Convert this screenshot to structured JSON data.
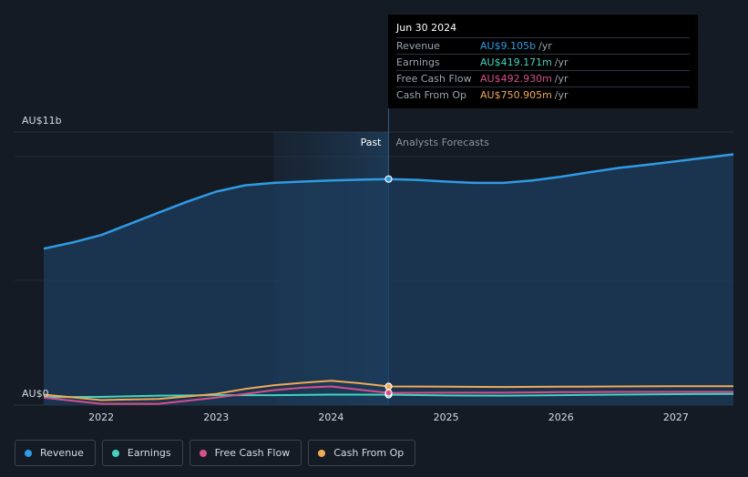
{
  "chart_data": {
    "type": "area",
    "y_unit_label_top": "AU$11b",
    "y_unit_label_bottom": "AU$0",
    "ylim": [
      0,
      11
    ],
    "xlim": [
      2021.5,
      2027.5
    ],
    "x_ticks": [
      2022,
      2023,
      2024,
      2025,
      2026,
      2027
    ],
    "x_tick_labels": [
      "2022",
      "2023",
      "2024",
      "2025",
      "2026",
      "2027"
    ],
    "past_label": "Past",
    "forecast_label": "Analysts Forecasts",
    "past_start": 2023.5,
    "divider": 2024.5,
    "series": [
      {
        "name": "Revenue",
        "color": "#2f9be4",
        "x": [
          2021.5,
          2021.75,
          2022.0,
          2022.25,
          2022.5,
          2022.75,
          2023.0,
          2023.25,
          2023.5,
          2023.75,
          2024.0,
          2024.25,
          2024.5,
          2024.75,
          2025.0,
          2025.25,
          2025.5,
          2025.75,
          2026.0,
          2026.25,
          2026.5,
          2026.75,
          2027.0,
          2027.25,
          2027.5
        ],
        "values": [
          6.3,
          6.55,
          6.85,
          7.3,
          7.75,
          8.2,
          8.6,
          8.85,
          8.95,
          9.0,
          9.05,
          9.08,
          9.105,
          9.07,
          9.0,
          8.95,
          8.95,
          9.05,
          9.2,
          9.38,
          9.55,
          9.68,
          9.82,
          9.96,
          10.1
        ]
      },
      {
        "name": "Earnings",
        "color": "#43d3c0",
        "x": [
          2021.5,
          2022.0,
          2022.5,
          2023.0,
          2023.5,
          2024.0,
          2024.5,
          2025.0,
          2025.5,
          2026.0,
          2026.5,
          2027.0,
          2027.5
        ],
        "values": [
          0.32,
          0.33,
          0.38,
          0.4,
          0.4,
          0.42,
          0.419,
          0.39,
          0.38,
          0.4,
          0.42,
          0.44,
          0.45
        ]
      },
      {
        "name": "Free Cash Flow",
        "color": "#d6508a",
        "x": [
          2021.5,
          2022.0,
          2022.5,
          2023.0,
          2023.25,
          2023.5,
          2023.75,
          2024.0,
          2024.25,
          2024.5,
          2025.0,
          2025.5,
          2026.0,
          2026.5,
          2027.0,
          2027.5
        ],
        "values": [
          0.3,
          0.05,
          0.05,
          0.3,
          0.45,
          0.6,
          0.7,
          0.75,
          0.62,
          0.493,
          0.5,
          0.5,
          0.52,
          0.53,
          0.53,
          0.53
        ]
      },
      {
        "name": "Cash From Op",
        "color": "#f0a955",
        "x": [
          2021.5,
          2022.0,
          2022.5,
          2023.0,
          2023.25,
          2023.5,
          2023.75,
          2024.0,
          2024.25,
          2024.5,
          2025.0,
          2025.5,
          2026.0,
          2026.5,
          2027.0,
          2027.5
        ],
        "values": [
          0.42,
          0.2,
          0.25,
          0.45,
          0.65,
          0.8,
          0.9,
          0.98,
          0.88,
          0.751,
          0.74,
          0.73,
          0.74,
          0.75,
          0.76,
          0.76
        ]
      }
    ],
    "tooltip": {
      "date": "Jun 30 2024",
      "x": 2024.5,
      "rows": [
        {
          "label": "Revenue",
          "value": "AU$9.105b",
          "unit": "/yr",
          "color": "#2f9be4"
        },
        {
          "label": "Earnings",
          "value": "AU$419.171m",
          "unit": "/yr",
          "color": "#43d3c0"
        },
        {
          "label": "Free Cash Flow",
          "value": "AU$492.930m",
          "unit": "/yr",
          "color": "#d6508a"
        },
        {
          "label": "Cash From Op",
          "value": "AU$750.905m",
          "unit": "/yr",
          "color": "#f0a955"
        }
      ]
    },
    "legend": [
      {
        "label": "Revenue",
        "color": "#2f9be4"
      },
      {
        "label": "Earnings",
        "color": "#43d3c0"
      },
      {
        "label": "Free Cash Flow",
        "color": "#d6508a"
      },
      {
        "label": "Cash From Op",
        "color": "#f0a955"
      }
    ],
    "grid": true
  }
}
